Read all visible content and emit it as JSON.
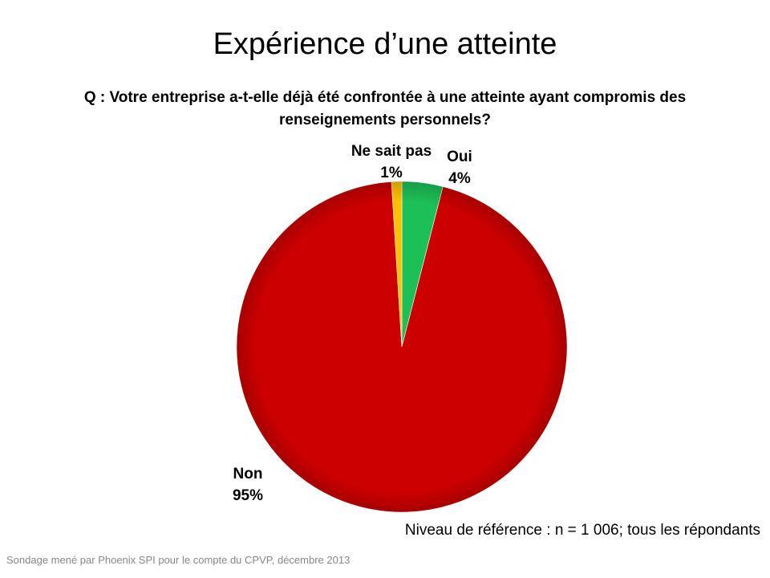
{
  "title": "Expérience d’une atteinte",
  "question": "Q : Votre entreprise a-t-elle déjà été confrontée à une atteinte ayant compromis des renseignements personnels?",
  "base_note": "Niveau de référence : n = 1 006; tous les répondants",
  "source": "Sondage mené par Phoenix SPI pour le compte du CPVP, décembre 2013",
  "chart_data": {
    "type": "pie",
    "start": "12 o'clock, clockwise",
    "slices": [
      {
        "label": "Oui",
        "value": 4,
        "value_label": "4%",
        "color": "#1dbf57"
      },
      {
        "label": "Non",
        "value": 95,
        "value_label": "95%",
        "color": "#cc0000"
      },
      {
        "label": "Ne sait pas",
        "value": 1,
        "value_label": "1%",
        "color": "#ffc000"
      }
    ]
  }
}
